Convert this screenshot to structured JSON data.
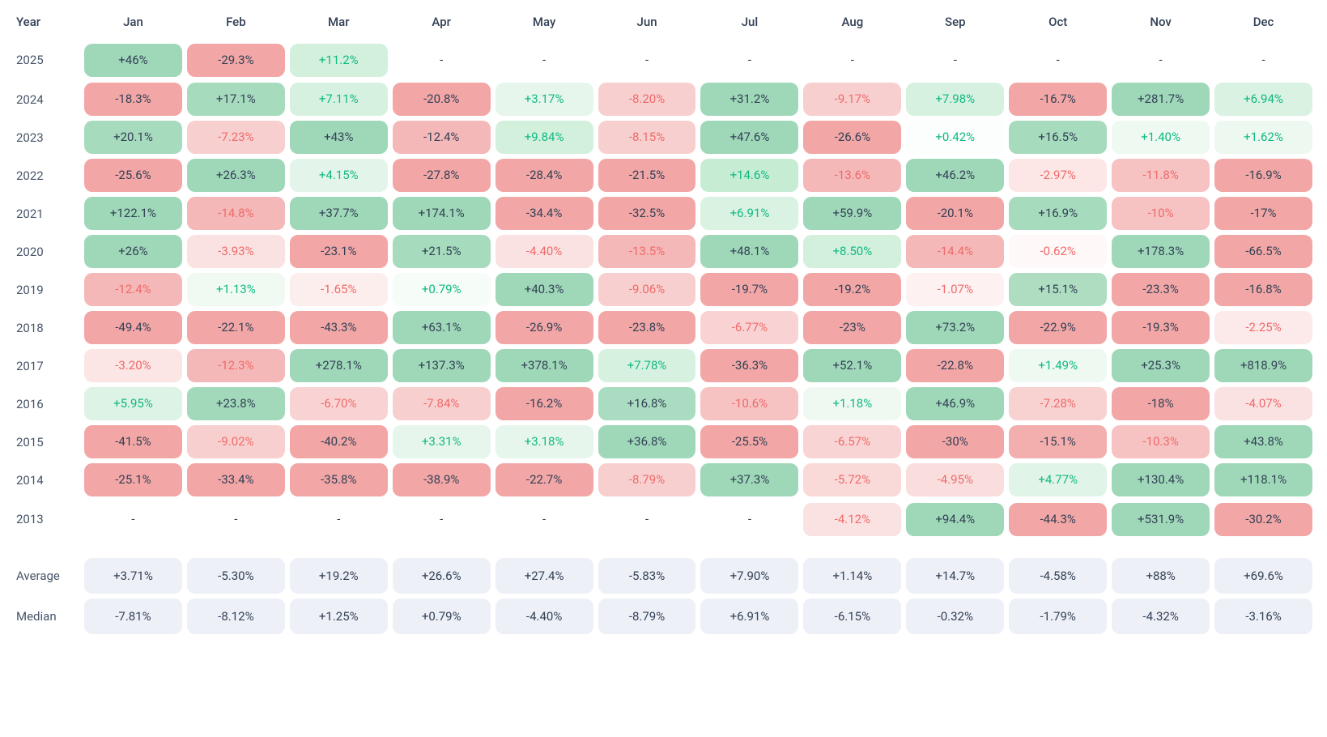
{
  "type": "heatmap-table",
  "columns": [
    "Year",
    "Jan",
    "Feb",
    "Mar",
    "Apr",
    "May",
    "Jun",
    "Jul",
    "Aug",
    "Sep",
    "Oct",
    "Nov",
    "Dec"
  ],
  "stat_rows": [
    "Average",
    "Median"
  ],
  "stat_bg": "#eef0f8",
  "empty_placeholder": "-",
  "text_color_dark": "#334155",
  "text_color_pos": "#10b981",
  "text_color_neg": "#ef6a6a",
  "palette_comment": "bg chosen per-cell; text_style: dark|pos|neg",
  "years": [
    {
      "year": "2025",
      "cells": [
        {
          "v": "+46%",
          "bg": "#9fd8b9",
          "t": "dark"
        },
        {
          "v": "-29.3%",
          "bg": "#f2a6a6",
          "t": "dark"
        },
        {
          "v": "+11.2%",
          "bg": "#d3f0dd",
          "t": "pos"
        },
        null,
        null,
        null,
        null,
        null,
        null,
        null,
        null,
        null
      ]
    },
    {
      "year": "2024",
      "cells": [
        {
          "v": "-18.3%",
          "bg": "#f2a6a6",
          "t": "dark"
        },
        {
          "v": "+17.1%",
          "bg": "#a6dbbd",
          "t": "dark"
        },
        {
          "v": "+7.11%",
          "bg": "#d7f1e0",
          "t": "pos"
        },
        {
          "v": "-20.8%",
          "bg": "#f2a6a6",
          "t": "dark"
        },
        {
          "v": "+3.17%",
          "bg": "#e6f6ec",
          "t": "pos"
        },
        {
          "v": "-8.20%",
          "bg": "#f8cfcf",
          "t": "neg"
        },
        {
          "v": "+31.2%",
          "bg": "#9fd8b9",
          "t": "dark"
        },
        {
          "v": "-9.17%",
          "bg": "#f8cfcf",
          "t": "neg"
        },
        {
          "v": "+7.98%",
          "bg": "#d7f1e0",
          "t": "pos"
        },
        {
          "v": "-16.7%",
          "bg": "#f2a6a6",
          "t": "dark"
        },
        {
          "v": "+281.7%",
          "bg": "#9fd8b9",
          "t": "dark"
        },
        {
          "v": "+6.94%",
          "bg": "#daf2e2",
          "t": "pos"
        }
      ]
    },
    {
      "year": "2023",
      "cells": [
        {
          "v": "+20.1%",
          "bg": "#a6dbbd",
          "t": "dark"
        },
        {
          "v": "-7.23%",
          "bg": "#f8cfcf",
          "t": "neg"
        },
        {
          "v": "+43%",
          "bg": "#9fd8b9",
          "t": "dark"
        },
        {
          "v": "-12.4%",
          "bg": "#f5b8b8",
          "t": "dark"
        },
        {
          "v": "+9.84%",
          "bg": "#d3f0dd",
          "t": "pos"
        },
        {
          "v": "-8.15%",
          "bg": "#f8cfcf",
          "t": "neg"
        },
        {
          "v": "+47.6%",
          "bg": "#9fd8b9",
          "t": "dark"
        },
        {
          "v": "-26.6%",
          "bg": "#f2a6a6",
          "t": "dark"
        },
        {
          "v": "+0.42%",
          "bg": "#fbfefc",
          "t": "pos"
        },
        {
          "v": "+16.5%",
          "bg": "#a6dbbd",
          "t": "dark"
        },
        {
          "v": "+1.40%",
          "bg": "#eef9f2",
          "t": "pos"
        },
        {
          "v": "+1.62%",
          "bg": "#ecf8f0",
          "t": "pos"
        }
      ]
    },
    {
      "year": "2022",
      "cells": [
        {
          "v": "-25.6%",
          "bg": "#f2a6a6",
          "t": "dark"
        },
        {
          "v": "+26.3%",
          "bg": "#9fd8b9",
          "t": "dark"
        },
        {
          "v": "+4.15%",
          "bg": "#e3f5ea",
          "t": "pos"
        },
        {
          "v": "-27.8%",
          "bg": "#f2a6a6",
          "t": "dark"
        },
        {
          "v": "-28.4%",
          "bg": "#f2a6a6",
          "t": "dark"
        },
        {
          "v": "-21.5%",
          "bg": "#f2a6a6",
          "t": "dark"
        },
        {
          "v": "+14.6%",
          "bg": "#c6ecd4",
          "t": "pos"
        },
        {
          "v": "-13.6%",
          "bg": "#f5b8b8",
          "t": "neg"
        },
        {
          "v": "+46.2%",
          "bg": "#9fd8b9",
          "t": "dark"
        },
        {
          "v": "-2.97%",
          "bg": "#fce6e6",
          "t": "neg"
        },
        {
          "v": "-11.8%",
          "bg": "#f6c2c2",
          "t": "neg"
        },
        {
          "v": "-16.9%",
          "bg": "#f2a6a6",
          "t": "dark"
        }
      ]
    },
    {
      "year": "2021",
      "cells": [
        {
          "v": "+122.1%",
          "bg": "#9fd8b9",
          "t": "dark"
        },
        {
          "v": "-14.8%",
          "bg": "#f5b8b8",
          "t": "neg"
        },
        {
          "v": "+37.7%",
          "bg": "#9fd8b9",
          "t": "dark"
        },
        {
          "v": "+174.1%",
          "bg": "#9fd8b9",
          "t": "dark"
        },
        {
          "v": "-34.4%",
          "bg": "#f2a6a6",
          "t": "dark"
        },
        {
          "v": "-32.5%",
          "bg": "#f2a6a6",
          "t": "dark"
        },
        {
          "v": "+6.91%",
          "bg": "#daf2e2",
          "t": "pos"
        },
        {
          "v": "+59.9%",
          "bg": "#9fd8b9",
          "t": "dark"
        },
        {
          "v": "-20.1%",
          "bg": "#f2a6a6",
          "t": "dark"
        },
        {
          "v": "+16.9%",
          "bg": "#a6dbbd",
          "t": "dark"
        },
        {
          "v": "-10%",
          "bg": "#f6c2c2",
          "t": "neg"
        },
        {
          "v": "-17%",
          "bg": "#f2a6a6",
          "t": "dark"
        }
      ]
    },
    {
      "year": "2020",
      "cells": [
        {
          "v": "+26%",
          "bg": "#9fd8b9",
          "t": "dark"
        },
        {
          "v": "-3.93%",
          "bg": "#fbe2e2",
          "t": "neg"
        },
        {
          "v": "-23.1%",
          "bg": "#f2a6a6",
          "t": "dark"
        },
        {
          "v": "+21.5%",
          "bg": "#a6dbbd",
          "t": "dark"
        },
        {
          "v": "-4.40%",
          "bg": "#fbe2e2",
          "t": "neg"
        },
        {
          "v": "-13.5%",
          "bg": "#f5b8b8",
          "t": "neg"
        },
        {
          "v": "+48.1%",
          "bg": "#9fd8b9",
          "t": "dark"
        },
        {
          "v": "+8.50%",
          "bg": "#d3f0dd",
          "t": "pos"
        },
        {
          "v": "-14.4%",
          "bg": "#f5b8b8",
          "t": "neg"
        },
        {
          "v": "-0.62%",
          "bg": "#fef8f8",
          "t": "neg"
        },
        {
          "v": "+178.3%",
          "bg": "#9fd8b9",
          "t": "dark"
        },
        {
          "v": "-66.5%",
          "bg": "#f2a6a6",
          "t": "dark"
        }
      ]
    },
    {
      "year": "2019",
      "cells": [
        {
          "v": "-12.4%",
          "bg": "#f5b8b8",
          "t": "neg"
        },
        {
          "v": "+1.13%",
          "bg": "#f0faf3",
          "t": "pos"
        },
        {
          "v": "-1.65%",
          "bg": "#fdeeee",
          "t": "neg"
        },
        {
          "v": "+0.79%",
          "bg": "#f6fcf8",
          "t": "pos"
        },
        {
          "v": "+40.3%",
          "bg": "#9fd8b9",
          "t": "dark"
        },
        {
          "v": "-9.06%",
          "bg": "#f8cfcf",
          "t": "neg"
        },
        {
          "v": "-19.7%",
          "bg": "#f2a6a6",
          "t": "dark"
        },
        {
          "v": "-19.2%",
          "bg": "#f2a6a6",
          "t": "dark"
        },
        {
          "v": "-1.07%",
          "bg": "#fdf1f1",
          "t": "neg"
        },
        {
          "v": "+15.1%",
          "bg": "#aeddc2",
          "t": "dark"
        },
        {
          "v": "-23.3%",
          "bg": "#f2a6a6",
          "t": "dark"
        },
        {
          "v": "-16.8%",
          "bg": "#f2a6a6",
          "t": "dark"
        }
      ]
    },
    {
      "year": "2018",
      "cells": [
        {
          "v": "-49.4%",
          "bg": "#f2a6a6",
          "t": "dark"
        },
        {
          "v": "-22.1%",
          "bg": "#f2a6a6",
          "t": "dark"
        },
        {
          "v": "-43.3%",
          "bg": "#f2a6a6",
          "t": "dark"
        },
        {
          "v": "+63.1%",
          "bg": "#9fd8b9",
          "t": "dark"
        },
        {
          "v": "-26.9%",
          "bg": "#f2a6a6",
          "t": "dark"
        },
        {
          "v": "-23.8%",
          "bg": "#f2a6a6",
          "t": "dark"
        },
        {
          "v": "-6.77%",
          "bg": "#f9d3d3",
          "t": "neg"
        },
        {
          "v": "-23%",
          "bg": "#f2a6a6",
          "t": "dark"
        },
        {
          "v": "+73.2%",
          "bg": "#9fd8b9",
          "t": "dark"
        },
        {
          "v": "-22.9%",
          "bg": "#f2a6a6",
          "t": "dark"
        },
        {
          "v": "-19.3%",
          "bg": "#f2a6a6",
          "t": "dark"
        },
        {
          "v": "-2.25%",
          "bg": "#fceaea",
          "t": "neg"
        }
      ]
    },
    {
      "year": "2017",
      "cells": [
        {
          "v": "-3.20%",
          "bg": "#fbe5e5",
          "t": "neg"
        },
        {
          "v": "-12.3%",
          "bg": "#f5b8b8",
          "t": "neg"
        },
        {
          "v": "+278.1%",
          "bg": "#9fd8b9",
          "t": "dark"
        },
        {
          "v": "+137.3%",
          "bg": "#9fd8b9",
          "t": "dark"
        },
        {
          "v": "+378.1%",
          "bg": "#9fd8b9",
          "t": "dark"
        },
        {
          "v": "+7.78%",
          "bg": "#d7f1e0",
          "t": "pos"
        },
        {
          "v": "-36.3%",
          "bg": "#f2a6a6",
          "t": "dark"
        },
        {
          "v": "+52.1%",
          "bg": "#9fd8b9",
          "t": "dark"
        },
        {
          "v": "-22.8%",
          "bg": "#f2a6a6",
          "t": "dark"
        },
        {
          "v": "+1.49%",
          "bg": "#edf9f1",
          "t": "pos"
        },
        {
          "v": "+25.3%",
          "bg": "#9fd8b9",
          "t": "dark"
        },
        {
          "v": "+818.9%",
          "bg": "#9fd8b9",
          "t": "dark"
        }
      ]
    },
    {
      "year": "2016",
      "cells": [
        {
          "v": "+5.95%",
          "bg": "#ddf3e5",
          "t": "pos"
        },
        {
          "v": "+23.8%",
          "bg": "#a2d9bb",
          "t": "dark"
        },
        {
          "v": "-6.70%",
          "bg": "#f9d3d3",
          "t": "neg"
        },
        {
          "v": "-7.84%",
          "bg": "#f8cfcf",
          "t": "neg"
        },
        {
          "v": "-16.2%",
          "bg": "#f2a6a6",
          "t": "dark"
        },
        {
          "v": "+16.8%",
          "bg": "#a9dcc0",
          "t": "dark"
        },
        {
          "v": "-10.6%",
          "bg": "#f6c2c2",
          "t": "neg"
        },
        {
          "v": "+1.18%",
          "bg": "#eff9f2",
          "t": "pos"
        },
        {
          "v": "+46.9%",
          "bg": "#9fd8b9",
          "t": "dark"
        },
        {
          "v": "-7.28%",
          "bg": "#f8d1d1",
          "t": "neg"
        },
        {
          "v": "-18%",
          "bg": "#f2a6a6",
          "t": "dark"
        },
        {
          "v": "-4.07%",
          "bg": "#fbe2e2",
          "t": "neg"
        }
      ]
    },
    {
      "year": "2015",
      "cells": [
        {
          "v": "-41.5%",
          "bg": "#f2a6a6",
          "t": "dark"
        },
        {
          "v": "-9.02%",
          "bg": "#f8cfcf",
          "t": "neg"
        },
        {
          "v": "-40.2%",
          "bg": "#f2a6a6",
          "t": "dark"
        },
        {
          "v": "+3.31%",
          "bg": "#e6f6ec",
          "t": "pos"
        },
        {
          "v": "+3.18%",
          "bg": "#e6f6ec",
          "t": "pos"
        },
        {
          "v": "+36.8%",
          "bg": "#9fd8b9",
          "t": "dark"
        },
        {
          "v": "-25.5%",
          "bg": "#f2a6a6",
          "t": "dark"
        },
        {
          "v": "-6.57%",
          "bg": "#f9d4d4",
          "t": "neg"
        },
        {
          "v": "-30%",
          "bg": "#f2a6a6",
          "t": "dark"
        },
        {
          "v": "-15.1%",
          "bg": "#f3aeae",
          "t": "dark"
        },
        {
          "v": "-10.3%",
          "bg": "#f6c2c2",
          "t": "neg"
        },
        {
          "v": "+43.8%",
          "bg": "#9fd8b9",
          "t": "dark"
        }
      ]
    },
    {
      "year": "2014",
      "cells": [
        {
          "v": "-25.1%",
          "bg": "#f2a6a6",
          "t": "dark"
        },
        {
          "v": "-33.4%",
          "bg": "#f2a6a6",
          "t": "dark"
        },
        {
          "v": "-35.8%",
          "bg": "#f2a6a6",
          "t": "dark"
        },
        {
          "v": "-38.9%",
          "bg": "#f2a6a6",
          "t": "dark"
        },
        {
          "v": "-22.7%",
          "bg": "#f2a6a6",
          "t": "dark"
        },
        {
          "v": "-8.79%",
          "bg": "#f8cfcf",
          "t": "neg"
        },
        {
          "v": "+37.3%",
          "bg": "#9fd8b9",
          "t": "dark"
        },
        {
          "v": "-5.72%",
          "bg": "#fad9d9",
          "t": "neg"
        },
        {
          "v": "-4.95%",
          "bg": "#fadede",
          "t": "neg"
        },
        {
          "v": "+4.77%",
          "bg": "#e0f4e8",
          "t": "pos"
        },
        {
          "v": "+130.4%",
          "bg": "#9fd8b9",
          "t": "dark"
        },
        {
          "v": "+118.1%",
          "bg": "#9fd8b9",
          "t": "dark"
        }
      ]
    },
    {
      "year": "2013",
      "cells": [
        null,
        null,
        null,
        null,
        null,
        null,
        null,
        {
          "v": "-4.12%",
          "bg": "#fbe2e2",
          "t": "neg"
        },
        {
          "v": "+94.4%",
          "bg": "#9fd8b9",
          "t": "dark"
        },
        {
          "v": "-44.3%",
          "bg": "#f2a6a6",
          "t": "dark"
        },
        {
          "v": "+531.9%",
          "bg": "#9fd8b9",
          "t": "dark"
        },
        {
          "v": "-30.2%",
          "bg": "#f2a6a6",
          "t": "dark"
        }
      ]
    }
  ],
  "stats": {
    "Average": [
      "+3.71%",
      "-5.30%",
      "+19.2%",
      "+26.6%",
      "+27.4%",
      "-5.83%",
      "+7.90%",
      "+1.14%",
      "+14.7%",
      "-4.58%",
      "+88%",
      "+69.6%"
    ],
    "Median": [
      "-7.81%",
      "-8.12%",
      "+1.25%",
      "+0.79%",
      "-4.40%",
      "-8.79%",
      "+6.91%",
      "-6.15%",
      "-0.32%",
      "-1.79%",
      "-4.32%",
      "-3.16%"
    ]
  }
}
